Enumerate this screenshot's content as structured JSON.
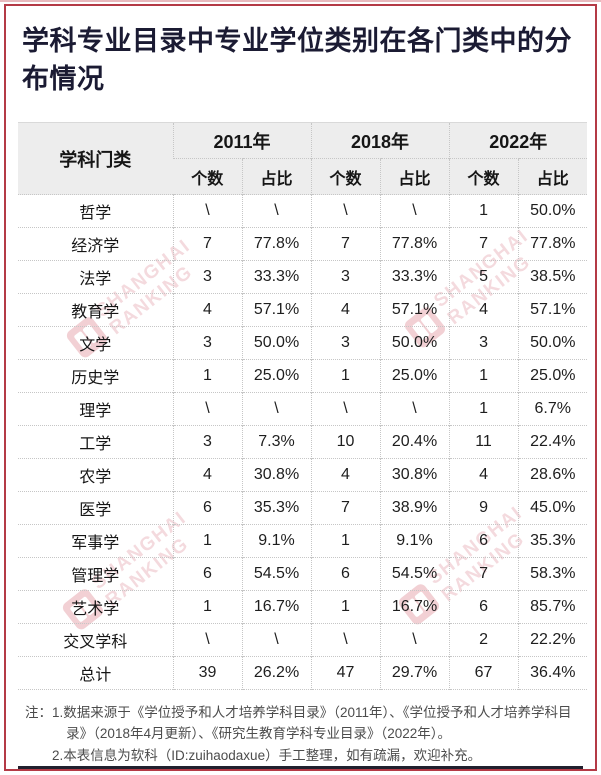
{
  "page": {
    "title": "学科专业目录中专业学位类别在各门类中的分布情况",
    "accent_color": "#b43a46",
    "title_color": "#1b1b33",
    "header_bg": "#ededed",
    "bottom_rule_color": "#20202e"
  },
  "watermark": {
    "line1": "SHANGHAI",
    "line2": "RANKING",
    "color": "#d67885"
  },
  "note": {
    "prefix": "注：",
    "item1": "1.数据来源于《学位授予和人才培养学科目录》（2011年）、《学位授予和人才培养学科目录》（2018年4月更新）、《研究生教育学科专业目录》（2022年）。",
    "item2": "2.本表信息为软科（ID:zuihaodaxue）手工整理，如有疏漏，欢迎补充。"
  },
  "chart_data": {
    "type": "table",
    "title": "学科专业目录中专业学位类别在各门类中的分布情况",
    "row_header": "学科门类",
    "column_groups": [
      "2011年",
      "2018年",
      "2022年"
    ],
    "sub_columns": [
      "个数",
      "占比"
    ],
    "rows": [
      [
        "哲学",
        "\\",
        "\\",
        "\\",
        "\\",
        "1",
        "50.0%"
      ],
      [
        "经济学",
        "7",
        "77.8%",
        "7",
        "77.8%",
        "7",
        "77.8%"
      ],
      [
        "法学",
        "3",
        "33.3%",
        "3",
        "33.3%",
        "5",
        "38.5%"
      ],
      [
        "教育学",
        "4",
        "57.1%",
        "4",
        "57.1%",
        "4",
        "57.1%"
      ],
      [
        "文学",
        "3",
        "50.0%",
        "3",
        "50.0%",
        "3",
        "50.0%"
      ],
      [
        "历史学",
        "1",
        "25.0%",
        "1",
        "25.0%",
        "1",
        "25.0%"
      ],
      [
        "理学",
        "\\",
        "\\",
        "\\",
        "\\",
        "1",
        "6.7%"
      ],
      [
        "工学",
        "3",
        "7.3%",
        "10",
        "20.4%",
        "11",
        "22.4%"
      ],
      [
        "农学",
        "4",
        "30.8%",
        "4",
        "30.8%",
        "4",
        "28.6%"
      ],
      [
        "医学",
        "6",
        "35.3%",
        "7",
        "38.9%",
        "9",
        "45.0%"
      ],
      [
        "军事学",
        "1",
        "9.1%",
        "1",
        "9.1%",
        "6",
        "35.3%"
      ],
      [
        "管理学",
        "6",
        "54.5%",
        "6",
        "54.5%",
        "7",
        "58.3%"
      ],
      [
        "艺术学",
        "1",
        "16.7%",
        "1",
        "16.7%",
        "6",
        "85.7%"
      ],
      [
        "交叉学科",
        "\\",
        "\\",
        "\\",
        "\\",
        "2",
        "22.2%"
      ],
      [
        "总计",
        "39",
        "26.2%",
        "47",
        "29.7%",
        "67",
        "36.4%"
      ]
    ]
  }
}
